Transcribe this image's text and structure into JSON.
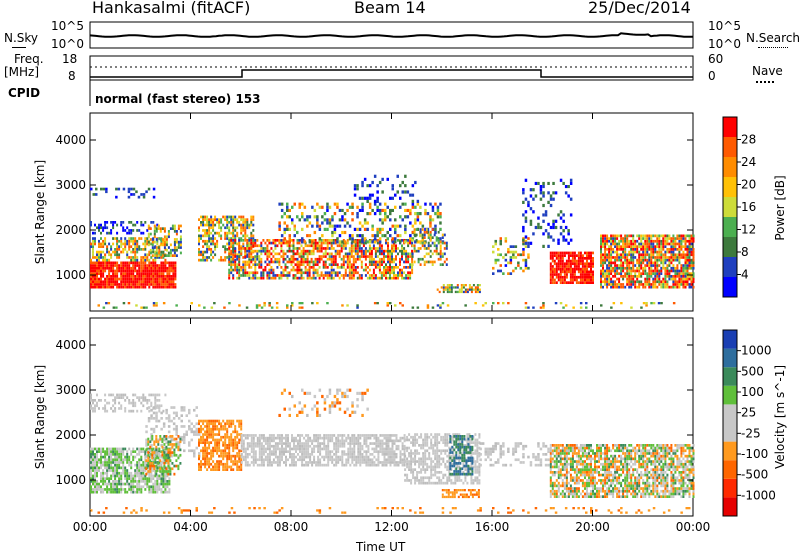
{
  "header": {
    "station": "Hankasalmi (fitACF)",
    "beam": "Beam 14",
    "date": "25/Dec/2014"
  },
  "nsky_panel": {
    "left_label": "N.Sky",
    "right_label": "N.Search",
    "left_ticks": [
      "10^5",
      "10^0"
    ],
    "right_ticks": [
      "10^5",
      "10^0"
    ]
  },
  "freq_panel": {
    "left_label_line1": "Freq.",
    "left_label_line2": "[MHz]",
    "right_label": "Nave",
    "left_ticks": [
      "18",
      "8"
    ],
    "right_ticks": [
      "60",
      "0"
    ]
  },
  "cpid_panel": {
    "left_label": "CPID",
    "text": "normal (fast stereo) 153"
  },
  "colors": {
    "power_scale": [
      "#0000ff",
      "#1f3fbf",
      "#3d7a3d",
      "#4caf50",
      "#cddc39",
      "#ffc107",
      "#ff8c00",
      "#ff5a00",
      "#ff0000"
    ],
    "velocity_scale": [
      "#1a3fb3",
      "#2e6e9e",
      "#3a8a5a",
      "#5fbf3a",
      "#c8c8c8",
      "#c8c8c8",
      "#ff9a1f",
      "#ff6600",
      "#ff2a00",
      "#e60000"
    ],
    "ground_scatter": "#c8c8c8"
  },
  "chart_data": [
    {
      "type": "heatmap",
      "title": "",
      "ylabel": "Slant Range [km]",
      "xlabel": "",
      "y_ticks": [
        "1000",
        "2000",
        "3000",
        "4000"
      ],
      "ylim": [
        200,
        4600
      ],
      "x_ticks": [
        "00:00",
        "04:00",
        "08:00",
        "12:00",
        "16:00",
        "20:00",
        "00:00"
      ],
      "colorbar_label": "Power [dB]",
      "colorbar_ticks": [
        "4",
        "8",
        "12",
        "16",
        "20",
        "24",
        "28"
      ]
    },
    {
      "type": "heatmap",
      "title": "",
      "ylabel": "Slant Range [km]",
      "xlabel": "Time UT",
      "y_ticks": [
        "1000",
        "2000",
        "3000",
        "4000"
      ],
      "ylim": [
        200,
        4600
      ],
      "x_ticks": [
        "00:00",
        "04:00",
        "08:00",
        "12:00",
        "16:00",
        "20:00",
        "00:00"
      ],
      "colorbar_label": "Velocity [m s^-1]",
      "colorbar_ticks": [
        "1000",
        "500",
        "100",
        "25",
        "-25",
        "-100",
        "-500",
        "-1000"
      ]
    }
  ]
}
